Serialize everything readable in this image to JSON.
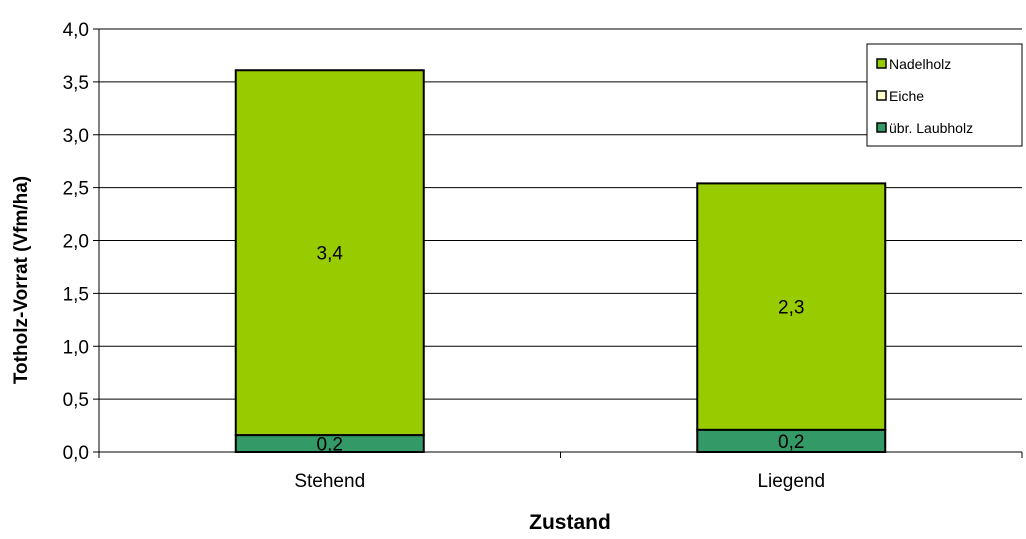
{
  "chart_data": {
    "type": "bar",
    "stacked": true,
    "categories": [
      "Stehend",
      "Liegend"
    ],
    "series": [
      {
        "name": "übr. Laubholz",
        "values": [
          0.16,
          0.21
        ],
        "labels": [
          "0,2",
          "0,2"
        ]
      },
      {
        "name": "Eiche",
        "values": [
          0.0,
          0.0
        ],
        "labels": [
          "",
          ""
        ]
      },
      {
        "name": "Nadelholz",
        "values": [
          3.45,
          2.33
        ],
        "labels": [
          "3,4",
          "2,3"
        ]
      }
    ],
    "xlabel": "Zustand",
    "ylabel": "Totholz-Vorrat (Vfm/ha)",
    "ylim": [
      0,
      4
    ],
    "yticks": [
      "0,0",
      "0,5",
      "1,0",
      "1,5",
      "2,0",
      "2,5",
      "3,0",
      "3,5",
      "4,0"
    ],
    "grid": true,
    "legend_position": "top-right",
    "legend_order": [
      "Nadelholz",
      "Eiche",
      "übr. Laubholz"
    ],
    "colors": {
      "Nadelholz": "#99CC00",
      "Eiche": "#FFFFCC",
      "übr. Laubholz": "#339966"
    }
  }
}
